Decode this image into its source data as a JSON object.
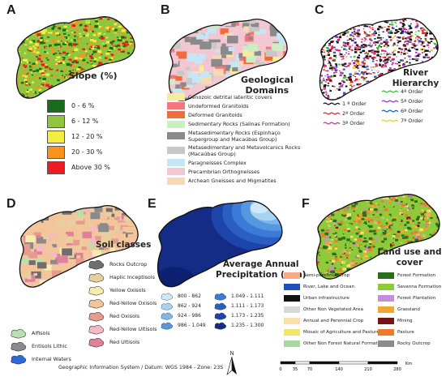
{
  "panels": {
    "A": {
      "letter": "A",
      "title": "Slope (%)",
      "legend": [
        {
          "label": "0 - 6 %",
          "color": "#1a6b1a"
        },
        {
          "label": "6 - 12 %",
          "color": "#8ec63f"
        },
        {
          "label": "12 - 20 %",
          "color": "#f5ec42"
        },
        {
          "label": "20 - 30 %",
          "color": "#f7941d"
        },
        {
          "label": "Above 30 %",
          "color": "#ed1c24"
        }
      ]
    },
    "B": {
      "letter": "B",
      "title_line1": "Geological",
      "title_line2": "Domains",
      "legend": [
        {
          "label": "Cenozoic detrital lateritic covers",
          "color": "#f6eba0"
        },
        {
          "label": "Undeformed Granitoids",
          "color": "#f0787a"
        },
        {
          "label": "Deformed Granitoids",
          "color": "#f26b3a"
        },
        {
          "label": "Sedimentary Rocks (Salinas Formation)",
          "color": "#cdeec0"
        },
        {
          "label": "Metasedimentary Rocks (Espinhaço Supergroup and Macaúbas Group)",
          "color": "#8a8a8a"
        },
        {
          "label": "Metasedimentary and Metavolcanics Rocks (Macaúbas Group)",
          "color": "#c8c8c8"
        },
        {
          "label": "Paragneisses Complex",
          "color": "#c6e6f5"
        },
        {
          "label": "Precambrian Orthogneisses",
          "color": "#f3c7d2"
        },
        {
          "label": "Archean Gneisses and Migmatites",
          "color": "#f7d9b2"
        }
      ]
    },
    "C": {
      "letter": "C",
      "title": "River Hierarchy",
      "legend_left": [
        {
          "label": "1 ª Order",
          "color": "#111111"
        },
        {
          "label": "2ª Order",
          "color": "#e0202a"
        },
        {
          "label": "3ª Order",
          "color": "#d0309a"
        }
      ],
      "legend_right": [
        {
          "label": "4ª Order",
          "color": "#2ec82e"
        },
        {
          "label": "5ª Order",
          "color": "#a030d0"
        },
        {
          "label": "6ª Order",
          "color": "#1a5ae0"
        },
        {
          "label": "7ª Order",
          "color": "#f0d020"
        }
      ]
    },
    "D": {
      "letter": "D",
      "title": "Soil classes",
      "legend_right": [
        {
          "label": "Rocks Outcrop",
          "color": "#6e6e6e"
        },
        {
          "label": "Haplic Inceptisols",
          "color": "#e8cfa0"
        },
        {
          "label": "Yellow Oxisols",
          "color": "#f5ecb0"
        },
        {
          "label": "Red-Yellow Oxisols",
          "color": "#f2c69a"
        },
        {
          "label": "Red Oxisols",
          "color": "#e89a90"
        },
        {
          "label": "Red-Yellow Ultisols",
          "color": "#f4b8c6"
        },
        {
          "label": "Red Ultisols",
          "color": "#e0809a"
        }
      ],
      "legend_left": [
        {
          "label": "Alfisols",
          "color": "#b8e0b0"
        },
        {
          "label": "Entisols Lithic",
          "color": "#8a8a8a"
        },
        {
          "label": "Internal Waters",
          "color": "#2a6ad8"
        }
      ]
    },
    "E": {
      "letter": "E",
      "title_line1": "Average Annual",
      "title_line2": "Precipitation (mm)",
      "legend_left": [
        {
          "label": "800 - 862",
          "color": "#cfe9f8"
        },
        {
          "label": "862 - 924",
          "color": "#a8d4f2"
        },
        {
          "label": "924 - 986",
          "color": "#7cb6ea"
        },
        {
          "label": "986 - 1.049",
          "color": "#5598e0"
        }
      ],
      "legend_right": [
        {
          "label": "1.049 - 1.111",
          "color": "#3b7ad6"
        },
        {
          "label": "1.111 - 1.173",
          "color": "#2a5ec2"
        },
        {
          "label": "1.173 - 1.235",
          "color": "#1d44a8"
        },
        {
          "label": "1.235 - 1.300",
          "color": "#142c86"
        }
      ]
    },
    "F": {
      "letter": "F",
      "title": "Land use and cover",
      "legend_left": [
        {
          "label": "Semi-perennial Crop",
          "color": "#f7a98a"
        },
        {
          "label": "River, Lake and Ocean",
          "color": "#1a52b8"
        },
        {
          "label": "Urban infrastructure",
          "color": "#111111"
        },
        {
          "label": "Other Non Vegetated Area",
          "color": "#d8d8d8"
        },
        {
          "label": "Annual and Perennial Crop",
          "color": "#f8e0a8"
        },
        {
          "label": "Mosaic of Agriculture and Pasture",
          "color": "#f2e46c"
        },
        {
          "label": "Other Non Forest Natural Formation",
          "color": "#a8d8a0"
        }
      ],
      "legend_right": [
        {
          "label": "Forest Formation",
          "color": "#2a6e1e"
        },
        {
          "label": "Savanna Formation",
          "color": "#8ecb3a"
        },
        {
          "label": "Forest Plantation",
          "color": "#c88cd8"
        },
        {
          "label": "Grassland",
          "color": "#f0a830"
        },
        {
          "label": "Mining",
          "color": "#7a1414"
        },
        {
          "label": "Pasture",
          "color": "#f07a2a"
        },
        {
          "label": "Rocky Outcrop",
          "color": "#8c8c8c"
        }
      ]
    }
  },
  "footer": "Geographic Information System / Datum: WGS 1984 - Zone: 23S",
  "north": "N",
  "scale": {
    "ticks": [
      "0",
      "35",
      "70",
      "140",
      "210",
      "280"
    ],
    "unit": "Km"
  }
}
